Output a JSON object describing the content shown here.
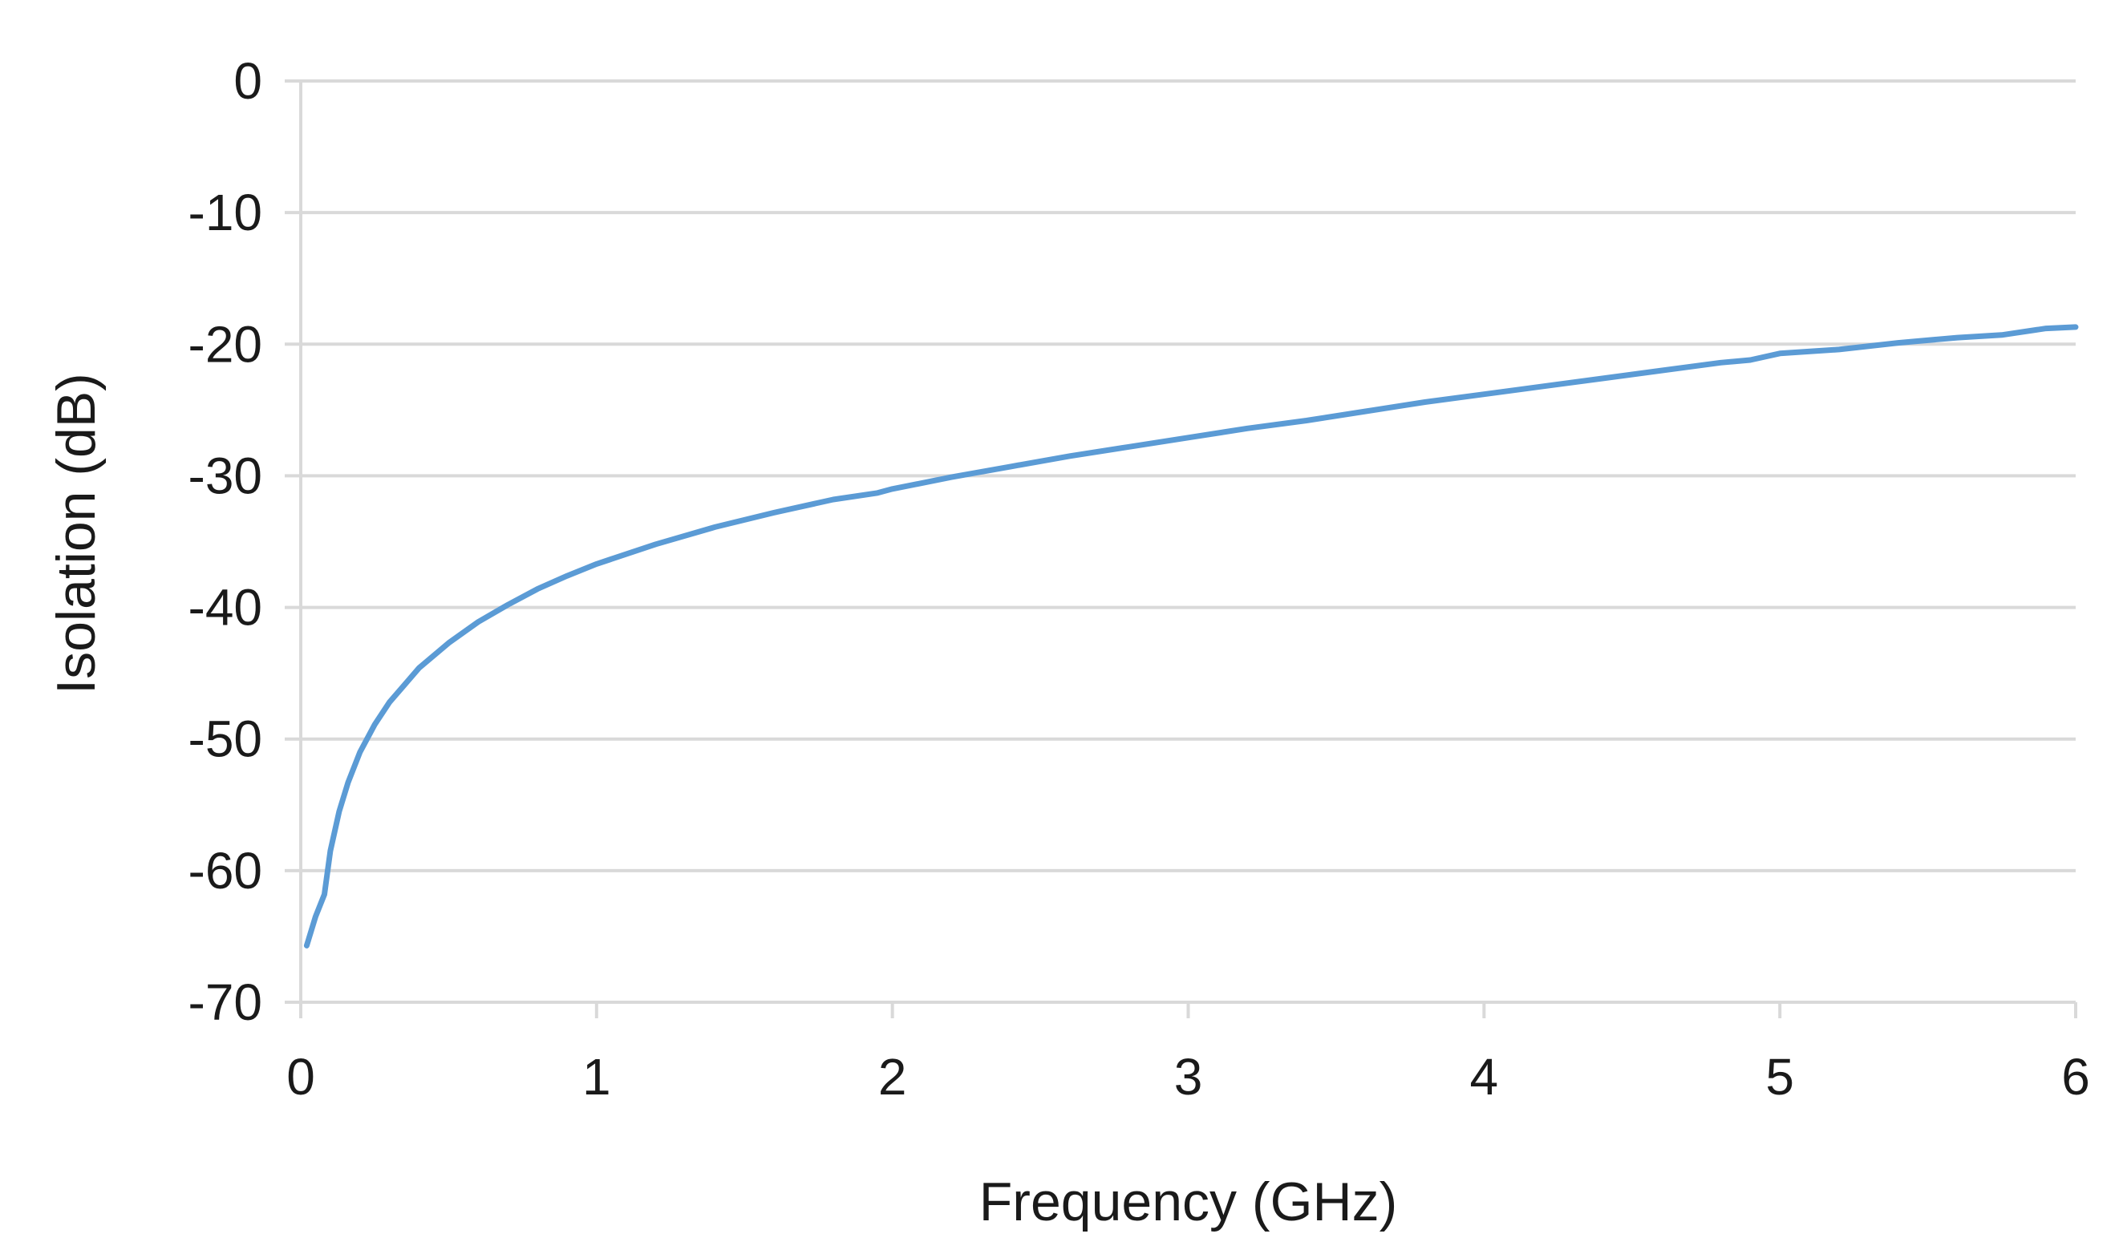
{
  "chart_data": {
    "type": "line",
    "title": "",
    "xlabel": "Frequency (GHz)",
    "ylabel": "Isolation (dB)",
    "xlim": [
      0,
      6
    ],
    "ylim": [
      -70,
      0
    ],
    "x_ticks": [
      0,
      1,
      2,
      3,
      4,
      5,
      6
    ],
    "y_ticks": [
      0,
      -10,
      -20,
      -30,
      -40,
      -50,
      -60,
      -70
    ],
    "grid": "horizontal",
    "legend": "none",
    "colors": {
      "series": "#5b9bd5",
      "grid": "#d9d9d9",
      "text": "#1a1a1a"
    },
    "series": [
      {
        "x": [
          0.02,
          0.05,
          0.08,
          0.1,
          0.13,
          0.16,
          0.2,
          0.25,
          0.3,
          0.4,
          0.5,
          0.6,
          0.7,
          0.8,
          0.9,
          1.0,
          1.2,
          1.4,
          1.6,
          1.8,
          1.95,
          2.0,
          2.2,
          2.4,
          2.6,
          2.8,
          3.0,
          3.2,
          3.4,
          3.6,
          3.8,
          4.0,
          4.2,
          4.4,
          4.6,
          4.8,
          4.9,
          5.0,
          5.2,
          5.4,
          5.6,
          5.75,
          5.9,
          6.0
        ],
        "y": [
          -65.7,
          -63.5,
          -61.8,
          -58.5,
          -55.5,
          -53.3,
          -51.0,
          -48.9,
          -47.2,
          -44.6,
          -42.7,
          -41.1,
          -39.8,
          -38.6,
          -37.6,
          -36.7,
          -35.2,
          -33.9,
          -32.8,
          -31.8,
          -31.3,
          -31.0,
          -30.1,
          -29.3,
          -28.5,
          -27.8,
          -27.1,
          -26.4,
          -25.8,
          -25.1,
          -24.4,
          -23.8,
          -23.2,
          -22.6,
          -22.0,
          -21.4,
          -21.2,
          -20.7,
          -20.4,
          -19.9,
          -19.5,
          -19.3,
          -18.8,
          -18.7
        ]
      }
    ]
  }
}
